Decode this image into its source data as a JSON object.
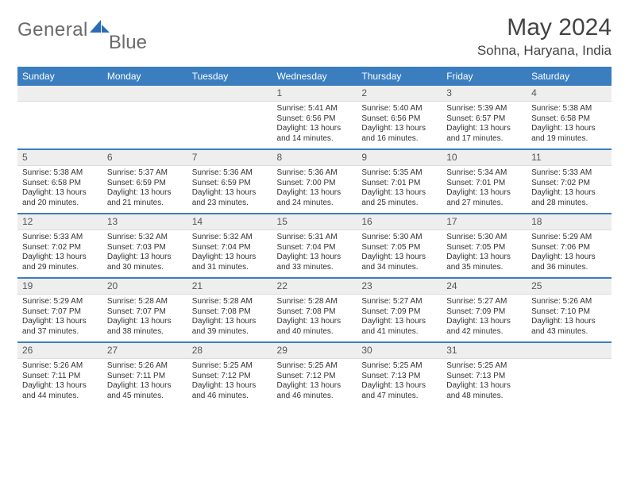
{
  "brand": {
    "text1": "General",
    "text2": "Blue"
  },
  "title": "May 2024",
  "location": "Sohna, Haryana, India",
  "colors": {
    "header_bg": "#3b7ec0",
    "header_fg": "#ffffff",
    "daynum_bg": "#eeeeee",
    "sep": "#3b7ec0",
    "text": "#333333"
  },
  "typography": {
    "title_fontsize": 30,
    "location_fontsize": 17,
    "th_fontsize": 12,
    "cell_fontsize": 10
  },
  "dayHeaders": [
    "Sunday",
    "Monday",
    "Tuesday",
    "Wednesday",
    "Thursday",
    "Friday",
    "Saturday"
  ],
  "weeks": [
    [
      null,
      null,
      null,
      {
        "n": "1",
        "sr": "Sunrise: 5:41 AM",
        "ss": "Sunset: 6:56 PM",
        "d1": "Daylight: 13 hours",
        "d2": "and 14 minutes."
      },
      {
        "n": "2",
        "sr": "Sunrise: 5:40 AM",
        "ss": "Sunset: 6:56 PM",
        "d1": "Daylight: 13 hours",
        "d2": "and 16 minutes."
      },
      {
        "n": "3",
        "sr": "Sunrise: 5:39 AM",
        "ss": "Sunset: 6:57 PM",
        "d1": "Daylight: 13 hours",
        "d2": "and 17 minutes."
      },
      {
        "n": "4",
        "sr": "Sunrise: 5:38 AM",
        "ss": "Sunset: 6:58 PM",
        "d1": "Daylight: 13 hours",
        "d2": "and 19 minutes."
      }
    ],
    [
      {
        "n": "5",
        "sr": "Sunrise: 5:38 AM",
        "ss": "Sunset: 6:58 PM",
        "d1": "Daylight: 13 hours",
        "d2": "and 20 minutes."
      },
      {
        "n": "6",
        "sr": "Sunrise: 5:37 AM",
        "ss": "Sunset: 6:59 PM",
        "d1": "Daylight: 13 hours",
        "d2": "and 21 minutes."
      },
      {
        "n": "7",
        "sr": "Sunrise: 5:36 AM",
        "ss": "Sunset: 6:59 PM",
        "d1": "Daylight: 13 hours",
        "d2": "and 23 minutes."
      },
      {
        "n": "8",
        "sr": "Sunrise: 5:36 AM",
        "ss": "Sunset: 7:00 PM",
        "d1": "Daylight: 13 hours",
        "d2": "and 24 minutes."
      },
      {
        "n": "9",
        "sr": "Sunrise: 5:35 AM",
        "ss": "Sunset: 7:01 PM",
        "d1": "Daylight: 13 hours",
        "d2": "and 25 minutes."
      },
      {
        "n": "10",
        "sr": "Sunrise: 5:34 AM",
        "ss": "Sunset: 7:01 PM",
        "d1": "Daylight: 13 hours",
        "d2": "and 27 minutes."
      },
      {
        "n": "11",
        "sr": "Sunrise: 5:33 AM",
        "ss": "Sunset: 7:02 PM",
        "d1": "Daylight: 13 hours",
        "d2": "and 28 minutes."
      }
    ],
    [
      {
        "n": "12",
        "sr": "Sunrise: 5:33 AM",
        "ss": "Sunset: 7:02 PM",
        "d1": "Daylight: 13 hours",
        "d2": "and 29 minutes."
      },
      {
        "n": "13",
        "sr": "Sunrise: 5:32 AM",
        "ss": "Sunset: 7:03 PM",
        "d1": "Daylight: 13 hours",
        "d2": "and 30 minutes."
      },
      {
        "n": "14",
        "sr": "Sunrise: 5:32 AM",
        "ss": "Sunset: 7:04 PM",
        "d1": "Daylight: 13 hours",
        "d2": "and 31 minutes."
      },
      {
        "n": "15",
        "sr": "Sunrise: 5:31 AM",
        "ss": "Sunset: 7:04 PM",
        "d1": "Daylight: 13 hours",
        "d2": "and 33 minutes."
      },
      {
        "n": "16",
        "sr": "Sunrise: 5:30 AM",
        "ss": "Sunset: 7:05 PM",
        "d1": "Daylight: 13 hours",
        "d2": "and 34 minutes."
      },
      {
        "n": "17",
        "sr": "Sunrise: 5:30 AM",
        "ss": "Sunset: 7:05 PM",
        "d1": "Daylight: 13 hours",
        "d2": "and 35 minutes."
      },
      {
        "n": "18",
        "sr": "Sunrise: 5:29 AM",
        "ss": "Sunset: 7:06 PM",
        "d1": "Daylight: 13 hours",
        "d2": "and 36 minutes."
      }
    ],
    [
      {
        "n": "19",
        "sr": "Sunrise: 5:29 AM",
        "ss": "Sunset: 7:07 PM",
        "d1": "Daylight: 13 hours",
        "d2": "and 37 minutes."
      },
      {
        "n": "20",
        "sr": "Sunrise: 5:28 AM",
        "ss": "Sunset: 7:07 PM",
        "d1": "Daylight: 13 hours",
        "d2": "and 38 minutes."
      },
      {
        "n": "21",
        "sr": "Sunrise: 5:28 AM",
        "ss": "Sunset: 7:08 PM",
        "d1": "Daylight: 13 hours",
        "d2": "and 39 minutes."
      },
      {
        "n": "22",
        "sr": "Sunrise: 5:28 AM",
        "ss": "Sunset: 7:08 PM",
        "d1": "Daylight: 13 hours",
        "d2": "and 40 minutes."
      },
      {
        "n": "23",
        "sr": "Sunrise: 5:27 AM",
        "ss": "Sunset: 7:09 PM",
        "d1": "Daylight: 13 hours",
        "d2": "and 41 minutes."
      },
      {
        "n": "24",
        "sr": "Sunrise: 5:27 AM",
        "ss": "Sunset: 7:09 PM",
        "d1": "Daylight: 13 hours",
        "d2": "and 42 minutes."
      },
      {
        "n": "25",
        "sr": "Sunrise: 5:26 AM",
        "ss": "Sunset: 7:10 PM",
        "d1": "Daylight: 13 hours",
        "d2": "and 43 minutes."
      }
    ],
    [
      {
        "n": "26",
        "sr": "Sunrise: 5:26 AM",
        "ss": "Sunset: 7:11 PM",
        "d1": "Daylight: 13 hours",
        "d2": "and 44 minutes."
      },
      {
        "n": "27",
        "sr": "Sunrise: 5:26 AM",
        "ss": "Sunset: 7:11 PM",
        "d1": "Daylight: 13 hours",
        "d2": "and 45 minutes."
      },
      {
        "n": "28",
        "sr": "Sunrise: 5:25 AM",
        "ss": "Sunset: 7:12 PM",
        "d1": "Daylight: 13 hours",
        "d2": "and 46 minutes."
      },
      {
        "n": "29",
        "sr": "Sunrise: 5:25 AM",
        "ss": "Sunset: 7:12 PM",
        "d1": "Daylight: 13 hours",
        "d2": "and 46 minutes."
      },
      {
        "n": "30",
        "sr": "Sunrise: 5:25 AM",
        "ss": "Sunset: 7:13 PM",
        "d1": "Daylight: 13 hours",
        "d2": "and 47 minutes."
      },
      {
        "n": "31",
        "sr": "Sunrise: 5:25 AM",
        "ss": "Sunset: 7:13 PM",
        "d1": "Daylight: 13 hours",
        "d2": "and 48 minutes."
      },
      null
    ]
  ]
}
